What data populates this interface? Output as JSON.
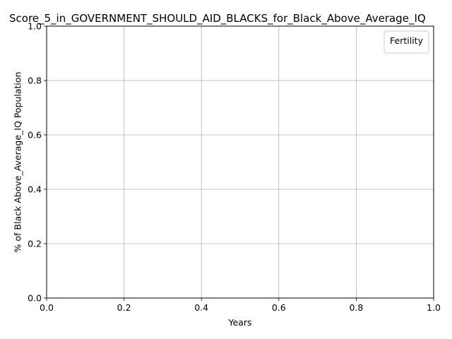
{
  "chart_data": {
    "type": "line",
    "title": "Score_5_in_GOVERNMENT_SHOULD_AID_BLACKS_for_Black_Above_Average_IQ",
    "xlabel": "Years",
    "ylabel": "% of Black Above_Average_IQ Population",
    "xlim": [
      0.0,
      1.0
    ],
    "ylim": [
      0.0,
      1.0
    ],
    "xticks": [
      "0.0",
      "0.2",
      "0.4",
      "0.6",
      "0.8",
      "1.0"
    ],
    "yticks": [
      "0.0",
      "0.2",
      "0.4",
      "0.6",
      "0.8",
      "1.0"
    ],
    "grid": true,
    "legend": {
      "title": "Fertility",
      "placement": "top-right",
      "entries": []
    },
    "series": []
  },
  "colors": {
    "grid": "#b0b0b0",
    "axis": "#000000",
    "legend_border": "#cccccc",
    "background": "#ffffff"
  }
}
